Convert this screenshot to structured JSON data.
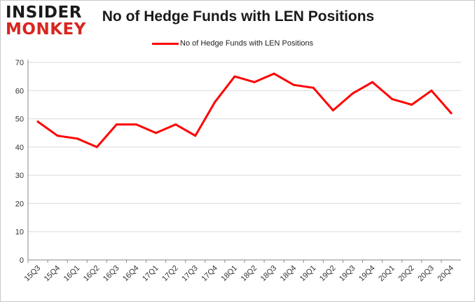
{
  "logo": {
    "line1": "INSIDER",
    "line2": "MONKEY"
  },
  "chart_data": {
    "type": "line",
    "title": "No of Hedge Funds with LEN Positions",
    "xlabel": "",
    "ylabel": "",
    "categories": [
      "15Q3",
      "15Q4",
      "16Q1",
      "16Q2",
      "16Q3",
      "16Q4",
      "17Q1",
      "17Q2",
      "17Q3",
      "17Q4",
      "18Q1",
      "18Q2",
      "18Q3",
      "18Q4",
      "19Q1",
      "19Q2",
      "19Q3",
      "19Q4",
      "20Q1",
      "20Q2",
      "20Q3",
      "20Q4"
    ],
    "series": [
      {
        "name": "No of Hedge Funds with LEN Positions",
        "color": "#ff0000",
        "values": [
          49,
          44,
          43,
          40,
          48,
          48,
          45,
          48,
          44,
          56,
          65,
          63,
          66,
          62,
          61,
          53,
          59,
          63,
          57,
          55,
          60,
          52
        ]
      }
    ],
    "ylim": [
      0,
      70
    ],
    "yticks": [
      0,
      10,
      20,
      30,
      40,
      50,
      60,
      70
    ],
    "grid": true,
    "legend": "top-center"
  }
}
